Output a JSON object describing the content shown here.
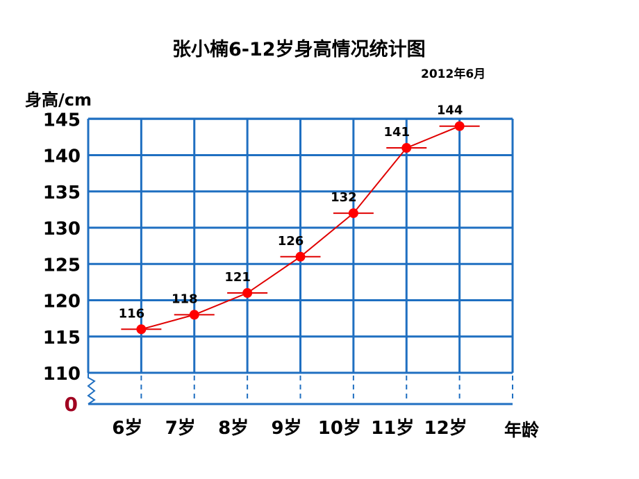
{
  "chart_data": {
    "type": "line",
    "title": "张小楠6-12岁身高情况统计图",
    "subtitle": "2012年6月",
    "ylabel": "身高/cm",
    "xlabel": "年龄",
    "categories": [
      "6岁",
      "7岁",
      "8岁",
      "9岁",
      "10岁",
      "11岁",
      "12岁"
    ],
    "series": [
      {
        "values": [
          116,
          118,
          121,
          126,
          132,
          141,
          144
        ]
      }
    ],
    "data_labels": [
      "116",
      "118",
      "121",
      "126",
      "132",
      "141",
      "144"
    ],
    "y_ticks": [
      "145",
      "140",
      "135",
      "130",
      "125",
      "120",
      "115",
      "110"
    ],
    "y_zero_label": "0",
    "ylim": [
      110,
      145
    ],
    "axis_break": true,
    "grid": true,
    "colors": {
      "grid": "#1f6fc1",
      "line": "#e00000",
      "marker": "#ff0000",
      "zero": "#a00020"
    }
  }
}
